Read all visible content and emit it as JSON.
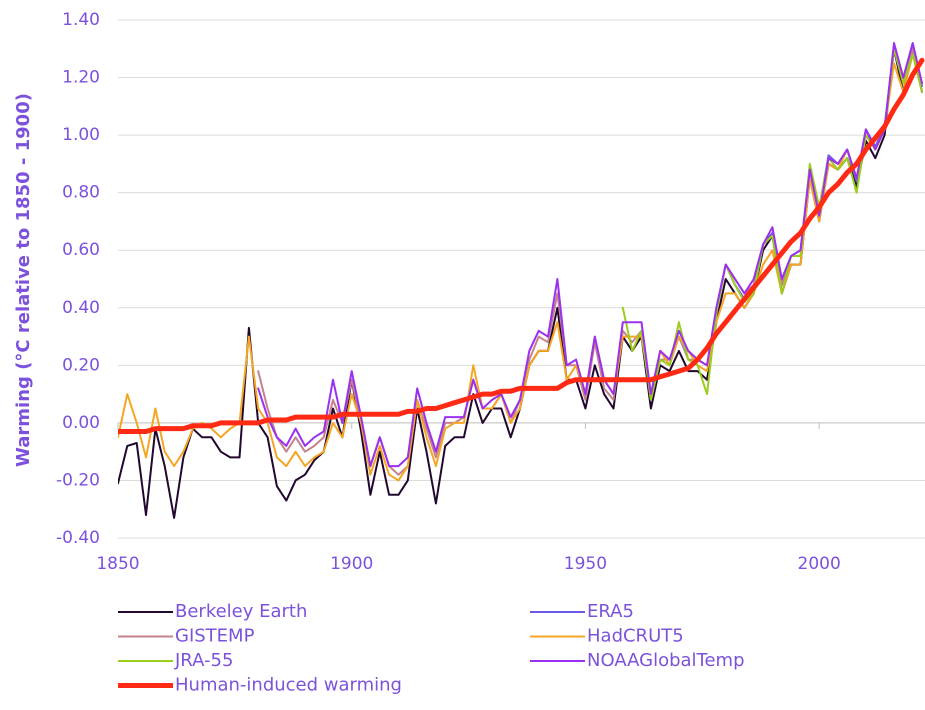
{
  "chart_data": {
    "type": "line",
    "y_label": "Warming (°C relative to 1850 - 1900)",
    "x": [
      1850,
      1852,
      1854,
      1856,
      1858,
      1860,
      1862,
      1864,
      1866,
      1868,
      1870,
      1872,
      1874,
      1876,
      1878,
      1880,
      1882,
      1884,
      1886,
      1888,
      1890,
      1892,
      1894,
      1896,
      1898,
      1900,
      1902,
      1904,
      1906,
      1908,
      1910,
      1912,
      1914,
      1916,
      1918,
      1920,
      1922,
      1924,
      1926,
      1928,
      1930,
      1932,
      1934,
      1936,
      1938,
      1940,
      1942,
      1944,
      1946,
      1948,
      1950,
      1952,
      1954,
      1956,
      1958,
      1960,
      1962,
      1964,
      1966,
      1968,
      1970,
      1972,
      1974,
      1976,
      1978,
      1980,
      1982,
      1984,
      1986,
      1988,
      1990,
      1992,
      1994,
      1996,
      1998,
      2000,
      2002,
      2004,
      2006,
      2008,
      2010,
      2012,
      2014,
      2016,
      2018,
      2020,
      2022
    ],
    "xlim": [
      1850,
      2022
    ],
    "xticks": [
      1850,
      1900,
      1950,
      2000
    ],
    "ylim": [
      -0.4,
      1.4
    ],
    "yticks": [
      {
        "value": -0.4,
        "label": "-0.40"
      },
      {
        "value": -0.2,
        "label": "-0.20"
      },
      {
        "value": 0,
        "label": "0.00"
      },
      {
        "value": 0.2,
        "label": "0.20"
      },
      {
        "value": 0.4,
        "label": "0.40"
      },
      {
        "value": 0.6,
        "label": "0.60"
      },
      {
        "value": 0.8,
        "label": "0.80"
      },
      {
        "value": 1.0,
        "label": "1.00"
      },
      {
        "value": 1.2,
        "label": "1.20"
      },
      {
        "value": 1.4,
        "label": "1.40"
      }
    ],
    "grid": true,
    "legend": "bottom",
    "series": [
      {
        "name": "Berkeley Earth",
        "color": "#22082f",
        "values": [
          -0.21,
          -0.08,
          -0.07,
          -0.32,
          -0.02,
          -0.15,
          -0.33,
          -0.12,
          -0.02,
          -0.05,
          -0.05,
          -0.1,
          -0.12,
          -0.12,
          0.33,
          0.0,
          -0.05,
          -0.22,
          -0.27,
          -0.2,
          -0.18,
          -0.13,
          -0.1,
          0.05,
          -0.05,
          0.15,
          -0.03,
          -0.25,
          -0.1,
          -0.25,
          -0.25,
          -0.2,
          0.05,
          -0.1,
          -0.28,
          -0.08,
          -0.05,
          -0.05,
          0.1,
          0.0,
          0.05,
          0.05,
          -0.05,
          0.05,
          0.2,
          0.25,
          0.25,
          0.4,
          0.15,
          0.15,
          0.05,
          0.2,
          0.1,
          0.05,
          0.3,
          0.25,
          0.3,
          0.05,
          0.2,
          0.18,
          0.25,
          0.18,
          0.18,
          0.15,
          0.35,
          0.5,
          0.45,
          0.4,
          0.45,
          0.6,
          0.65,
          0.45,
          0.55,
          0.55,
          0.85,
          0.7,
          0.9,
          0.88,
          0.92,
          0.82,
          0.98,
          0.92,
          1.0,
          1.3,
          1.15,
          1.3,
          1.15
        ]
      },
      {
        "name": "ERA5",
        "color": "#6a5ae6",
        "values": [
          null,
          null,
          null,
          null,
          null,
          null,
          null,
          null,
          null,
          null,
          null,
          null,
          null,
          null,
          null,
          null,
          null,
          null,
          null,
          null,
          null,
          null,
          null,
          null,
          null,
          null,
          null,
          null,
          null,
          null,
          null,
          null,
          null,
          null,
          null,
          null,
          null,
          null,
          null,
          null,
          null,
          null,
          null,
          null,
          null,
          null,
          null,
          null,
          null,
          null,
          null,
          null,
          null,
          null,
          null,
          null,
          null,
          null,
          null,
          null,
          null,
          null,
          null,
          null,
          null,
          0.55,
          0.48,
          0.43,
          0.48,
          0.62,
          0.66,
          0.48,
          0.58,
          0.6,
          0.88,
          0.74,
          0.93,
          0.9,
          0.95,
          0.84,
          1.02,
          0.96,
          1.03,
          1.31,
          1.19,
          1.31,
          1.17
        ]
      },
      {
        "name": "GISTEMP",
        "color": "#c4838c",
        "values": [
          null,
          null,
          null,
          null,
          null,
          null,
          null,
          null,
          null,
          null,
          null,
          null,
          null,
          null,
          null,
          0.18,
          0.05,
          -0.05,
          -0.1,
          -0.05,
          -0.1,
          -0.08,
          -0.05,
          0.08,
          0.0,
          0.15,
          0.0,
          -0.15,
          -0.05,
          -0.15,
          -0.18,
          -0.15,
          0.08,
          -0.02,
          -0.12,
          0.0,
          0.0,
          0.02,
          0.15,
          0.05,
          0.05,
          0.1,
          0.0,
          0.08,
          0.22,
          0.3,
          0.28,
          0.45,
          0.2,
          0.2,
          0.08,
          0.28,
          0.12,
          0.08,
          0.32,
          0.28,
          0.32,
          0.08,
          0.22,
          0.22,
          0.3,
          0.22,
          0.22,
          0.2,
          0.38,
          0.55,
          0.5,
          0.45,
          0.48,
          0.62,
          0.65,
          0.48,
          0.58,
          0.58,
          0.85,
          0.72,
          0.92,
          0.9,
          0.95,
          0.85,
          1.02,
          0.95,
          1.02,
          1.3,
          1.18,
          1.3,
          1.18
        ]
      },
      {
        "name": "HadCRUT5",
        "color": "#f5a623",
        "values": [
          -0.05,
          0.1,
          0.0,
          -0.12,
          0.05,
          -0.1,
          -0.15,
          -0.1,
          -0.02,
          0.0,
          -0.02,
          -0.05,
          -0.02,
          0.0,
          0.3,
          0.05,
          0.0,
          -0.12,
          -0.15,
          -0.1,
          -0.15,
          -0.12,
          -0.1,
          0.0,
          -0.05,
          0.1,
          0.0,
          -0.18,
          -0.08,
          -0.18,
          -0.2,
          -0.15,
          0.08,
          -0.05,
          -0.15,
          -0.02,
          0.0,
          0.0,
          0.2,
          0.05,
          0.05,
          0.1,
          0.0,
          0.05,
          0.2,
          0.25,
          0.25,
          0.35,
          0.15,
          0.2,
          0.1,
          0.3,
          0.15,
          0.1,
          0.3,
          0.3,
          0.3,
          0.1,
          0.25,
          0.2,
          0.3,
          0.25,
          0.2,
          0.18,
          0.35,
          0.45,
          0.45,
          0.4,
          0.45,
          0.55,
          0.6,
          0.45,
          0.55,
          0.55,
          0.85,
          0.7,
          0.9,
          0.88,
          0.95,
          0.85,
          1.0,
          0.95,
          1.02,
          1.25,
          1.15,
          1.28,
          1.18
        ]
      },
      {
        "name": "JRA-55",
        "color": "#9acd1e",
        "values": [
          null,
          null,
          null,
          null,
          null,
          null,
          null,
          null,
          null,
          null,
          null,
          null,
          null,
          null,
          null,
          null,
          null,
          null,
          null,
          null,
          null,
          null,
          null,
          null,
          null,
          null,
          null,
          null,
          null,
          null,
          null,
          null,
          null,
          null,
          null,
          null,
          null,
          null,
          null,
          null,
          null,
          null,
          null,
          null,
          null,
          null,
          null,
          null,
          null,
          null,
          null,
          null,
          null,
          null,
          0.4,
          0.25,
          0.32,
          0.08,
          0.22,
          0.2,
          0.35,
          0.22,
          0.2,
          0.1,
          0.38,
          0.55,
          0.48,
          0.42,
          0.45,
          0.62,
          0.65,
          0.45,
          0.58,
          0.58,
          0.9,
          0.75,
          0.92,
          0.88,
          0.92,
          0.8,
          1.0,
          0.95,
          1.02,
          1.3,
          1.18,
          1.28,
          1.15
        ]
      },
      {
        "name": "NOAAGlobalTemp",
        "color": "#9b30f0",
        "values": [
          null,
          null,
          null,
          null,
          null,
          null,
          null,
          null,
          null,
          null,
          null,
          null,
          null,
          null,
          null,
          0.12,
          0.02,
          -0.05,
          -0.08,
          -0.02,
          -0.08,
          -0.05,
          -0.03,
          0.15,
          0.0,
          0.18,
          0.02,
          -0.15,
          -0.05,
          -0.15,
          -0.15,
          -0.12,
          0.12,
          0.0,
          -0.1,
          0.02,
          0.02,
          0.02,
          0.15,
          0.05,
          0.08,
          0.1,
          0.02,
          0.08,
          0.25,
          0.32,
          0.3,
          0.5,
          0.2,
          0.22,
          0.1,
          0.3,
          0.15,
          0.1,
          0.35,
          0.35,
          0.35,
          0.1,
          0.25,
          0.22,
          0.32,
          0.25,
          0.22,
          0.2,
          0.4,
          0.55,
          0.5,
          0.45,
          0.5,
          0.62,
          0.68,
          0.5,
          0.58,
          0.6,
          0.88,
          0.72,
          0.92,
          0.9,
          0.95,
          0.85,
          1.02,
          0.95,
          1.02,
          1.32,
          1.2,
          1.32,
          1.18
        ]
      },
      {
        "name": "Human-induced warming",
        "color": "#ff2a14",
        "values": [
          -0.03,
          -0.03,
          -0.03,
          -0.03,
          -0.02,
          -0.02,
          -0.02,
          -0.02,
          -0.01,
          -0.01,
          -0.01,
          0.0,
          0.0,
          0.0,
          0.0,
          0.0,
          0.01,
          0.01,
          0.01,
          0.02,
          0.02,
          0.02,
          0.02,
          0.02,
          0.03,
          0.03,
          0.03,
          0.03,
          0.03,
          0.03,
          0.03,
          0.04,
          0.04,
          0.05,
          0.05,
          0.06,
          0.07,
          0.08,
          0.09,
          0.1,
          0.1,
          0.11,
          0.11,
          0.12,
          0.12,
          0.12,
          0.12,
          0.12,
          0.14,
          0.15,
          0.15,
          0.15,
          0.15,
          0.15,
          0.15,
          0.15,
          0.15,
          0.15,
          0.16,
          0.17,
          0.18,
          0.19,
          0.22,
          0.26,
          0.31,
          0.35,
          0.39,
          0.43,
          0.47,
          0.51,
          0.55,
          0.59,
          0.63,
          0.66,
          0.71,
          0.75,
          0.8,
          0.83,
          0.87,
          0.9,
          0.95,
          0.99,
          1.03,
          1.09,
          1.14,
          1.21,
          1.26
        ]
      }
    ]
  }
}
